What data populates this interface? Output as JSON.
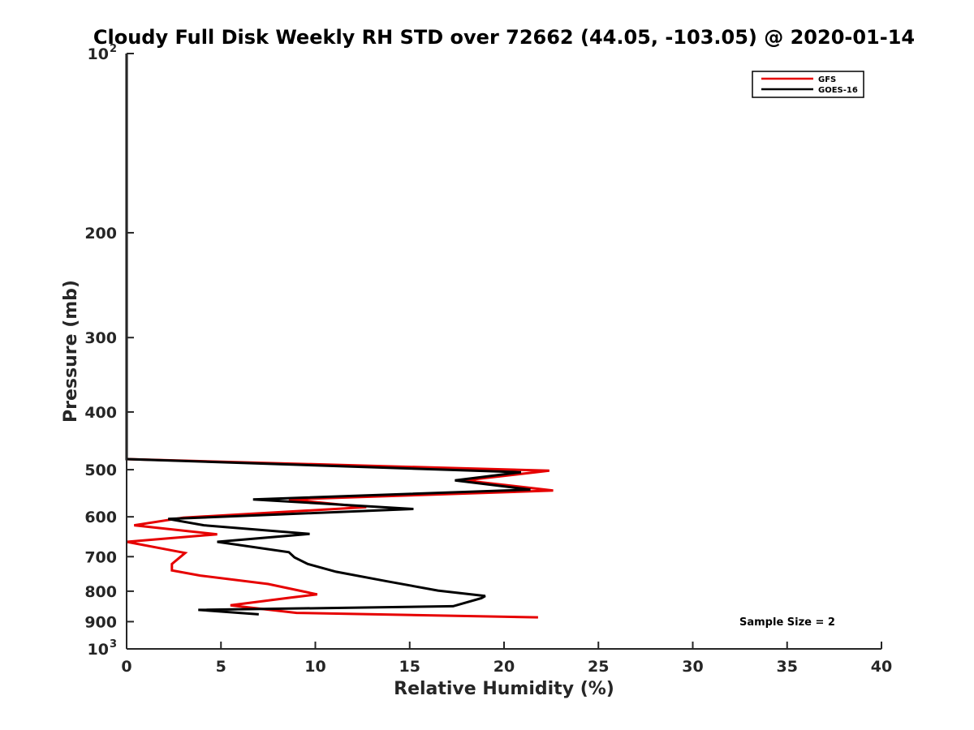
{
  "chart_data": {
    "type": "line",
    "title": "Cloudy Full Disk Weekly RH STD over 72662 (44.05, -103.05) @ 2020-01-14",
    "xlabel": "Relative Humidity (%)",
    "ylabel": "Pressure (mb)",
    "xlim": [
      0,
      40
    ],
    "ylim": [
      100,
      1000
    ],
    "y_scale": "log",
    "y_reversed": true,
    "grid": false,
    "legend_position": "top-right",
    "x_ticks": [
      "0",
      "5",
      "10",
      "15",
      "20",
      "25",
      "30",
      "35",
      "40"
    ],
    "y_ticks": [
      {
        "value": 100,
        "base": "10",
        "exp": "2"
      },
      {
        "value": 200,
        "base": "200",
        "exp": ""
      },
      {
        "value": 300,
        "base": "300",
        "exp": ""
      },
      {
        "value": 400,
        "base": "400",
        "exp": ""
      },
      {
        "value": 500,
        "base": "500",
        "exp": ""
      },
      {
        "value": 600,
        "base": "600",
        "exp": ""
      },
      {
        "value": 700,
        "base": "700",
        "exp": ""
      },
      {
        "value": 800,
        "base": "800",
        "exp": ""
      },
      {
        "value": 900,
        "base": "900",
        "exp": ""
      },
      {
        "value": 1000,
        "base": "10",
        "exp": "3"
      }
    ],
    "annotation": "Sample Size = 2",
    "series": [
      {
        "name": "GFS",
        "color": "#e60000",
        "points": [
          [
            0,
            100
          ],
          [
            0,
            480
          ],
          [
            22.4,
            502
          ],
          [
            17.9,
            521
          ],
          [
            22.6,
            542
          ],
          [
            8.6,
            561
          ],
          [
            12.7,
            578
          ],
          [
            3.0,
            602
          ],
          [
            0.4,
            620
          ],
          [
            4.8,
            642
          ],
          [
            0,
            661
          ],
          [
            3.1,
            690
          ],
          [
            2.4,
            720
          ],
          [
            2.4,
            738
          ],
          [
            3.9,
            753
          ],
          [
            7.5,
            778
          ],
          [
            10.1,
            810
          ],
          [
            8.7,
            820
          ],
          [
            5.5,
            845
          ],
          [
            9.0,
            870
          ],
          [
            21.8,
            885
          ]
        ]
      },
      {
        "name": "GOES-16",
        "color": "#000000",
        "points": [
          [
            0,
            100
          ],
          [
            0,
            480
          ],
          [
            20.9,
            505
          ],
          [
            17.4,
            521
          ],
          [
            21.4,
            540
          ],
          [
            6.7,
            561
          ],
          [
            15.2,
            582
          ],
          [
            2.2,
            605
          ],
          [
            4.1,
            620
          ],
          [
            9.7,
            641
          ],
          [
            4.8,
            661
          ],
          [
            8.6,
            688
          ],
          [
            8.9,
            702
          ],
          [
            9.6,
            720
          ],
          [
            11.1,
            742
          ],
          [
            13.8,
            770
          ],
          [
            16.5,
            798
          ],
          [
            19.0,
            815
          ],
          [
            18.8,
            822
          ],
          [
            17.3,
            848
          ],
          [
            3.8,
            860
          ],
          [
            7.0,
            875
          ]
        ]
      }
    ]
  }
}
